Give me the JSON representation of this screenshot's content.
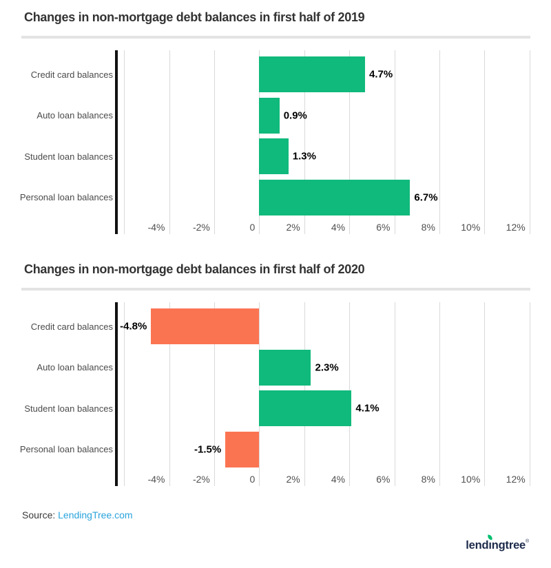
{
  "colors": {
    "positive": "#10b97c",
    "negative": "#fb7452",
    "axis_line": "#111111",
    "gridline": "#d9d9d9",
    "title": "#333333",
    "tick": "#4f4f4f",
    "category": "#4a4a4a",
    "value_label": "#000000",
    "divider": "#e3e3e3",
    "link_blue": "#29a3dc",
    "logo_navy": "#1c2a4a",
    "logo_leaf": "#00bf6f"
  },
  "source": {
    "prefix": "Source: ",
    "link": "LendingTree.com"
  },
  "logo": {
    "part1": "lend",
    "dotless_i": "ı",
    "part2": "ngtree",
    "reg": "®"
  },
  "chart_data": [
    {
      "type": "bar",
      "orientation": "horizontal",
      "title": "Changes in non-mortgage debt balances in first half of 2019",
      "categories": [
        "Credit card balances",
        "Auto loan balances",
        "Student loan balances",
        "Personal loan balances"
      ],
      "values": [
        4.7,
        0.9,
        1.3,
        6.7
      ],
      "value_labels": [
        "4.7%",
        "0.9%",
        "1.3%",
        "6.7%"
      ],
      "bar_colors": [
        "positive",
        "positive",
        "positive",
        "positive"
      ],
      "xlim": [
        -6.4,
        12.1
      ],
      "gridlines": [
        -6,
        -4,
        -2,
        0,
        2,
        4,
        6,
        8,
        10,
        12
      ],
      "x_ticks": [
        {
          "v": -4,
          "label": "-4%"
        },
        {
          "v": -2,
          "label": "-2%"
        },
        {
          "v": 0,
          "label": "0"
        },
        {
          "v": 2,
          "label": "2%"
        },
        {
          "v": 4,
          "label": "4%"
        },
        {
          "v": 6,
          "label": "6%"
        },
        {
          "v": 8,
          "label": "8%"
        },
        {
          "v": 10,
          "label": "10%"
        },
        {
          "v": 12,
          "label": "12%"
        }
      ],
      "grid": true,
      "legend": false
    },
    {
      "type": "bar",
      "orientation": "horizontal",
      "title": "Changes in non-mortgage debt balances in first half of 2020",
      "categories": [
        "Credit card balances",
        "Auto loan balances",
        "Student loan balances",
        "Personal loan balances"
      ],
      "values": [
        -4.8,
        2.3,
        4.1,
        -1.5
      ],
      "value_labels": [
        "-4.8%",
        "2.3%",
        "4.1%",
        "-1.5%"
      ],
      "bar_colors": [
        "negative",
        "positive",
        "positive",
        "negative"
      ],
      "xlim": [
        -6.4,
        12.1
      ],
      "gridlines": [
        -6,
        -4,
        -2,
        0,
        2,
        4,
        6,
        8,
        10,
        12
      ],
      "x_ticks": [
        {
          "v": -4,
          "label": "-4%"
        },
        {
          "v": -2,
          "label": "-2%"
        },
        {
          "v": 0,
          "label": "0"
        },
        {
          "v": 2,
          "label": "2%"
        },
        {
          "v": 4,
          "label": "4%"
        },
        {
          "v": 6,
          "label": "6%"
        },
        {
          "v": 8,
          "label": "8%"
        },
        {
          "v": 10,
          "label": "10%"
        },
        {
          "v": 12,
          "label": "12%"
        }
      ],
      "grid": true,
      "legend": false
    }
  ]
}
